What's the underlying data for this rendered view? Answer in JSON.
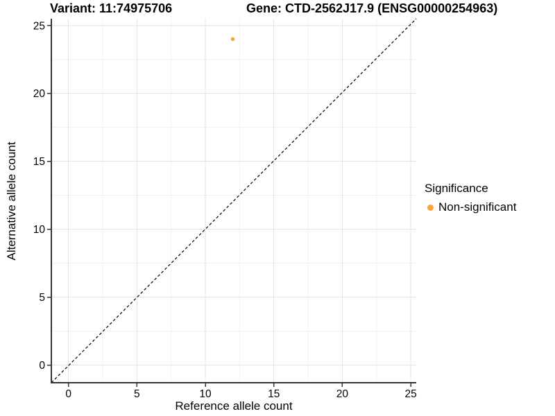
{
  "titles": {
    "variant": "Variant: 11:74975706",
    "gene": "Gene: CTD-2562J17.9 (ENSG00000254963)"
  },
  "chart_data": {
    "type": "scatter",
    "title_left": "Variant: 11:74975706",
    "title_right": "Gene: CTD-2562J17.9 (ENSG00000254963)",
    "xlabel": "Reference allele count",
    "ylabel": "Alternative allele count",
    "xlim": [
      -1.25,
      25.4
    ],
    "ylim": [
      -1.3,
      25.5
    ],
    "xticks": [
      0,
      5,
      10,
      15,
      20,
      25
    ],
    "yticks": [
      0,
      5,
      10,
      15,
      20,
      25
    ],
    "x_minor": [
      2.5,
      7.5,
      12.5,
      17.5,
      22.5
    ],
    "y_minor": [
      2.5,
      7.5,
      12.5,
      17.5,
      22.5
    ],
    "grid": true,
    "points": [
      {
        "x": 12,
        "y": 24,
        "series": "Non-significant"
      }
    ],
    "identity_line": {
      "style": "dashed",
      "from": [
        -1.3,
        -1.3
      ],
      "to": [
        25.5,
        25.5
      ]
    },
    "legend": {
      "position": "right",
      "title": "Significance",
      "items": [
        {
          "label": "Non-significant",
          "color": "#FAA43A"
        }
      ]
    },
    "style": {
      "point_color": "#FAA43A",
      "point_radius": 2.8,
      "grid_major": "#E3E3E3",
      "grid_minor": "#F1F1F1",
      "axis_color": "#333333",
      "dash_color": "#000000",
      "text_color": "#000000"
    }
  }
}
